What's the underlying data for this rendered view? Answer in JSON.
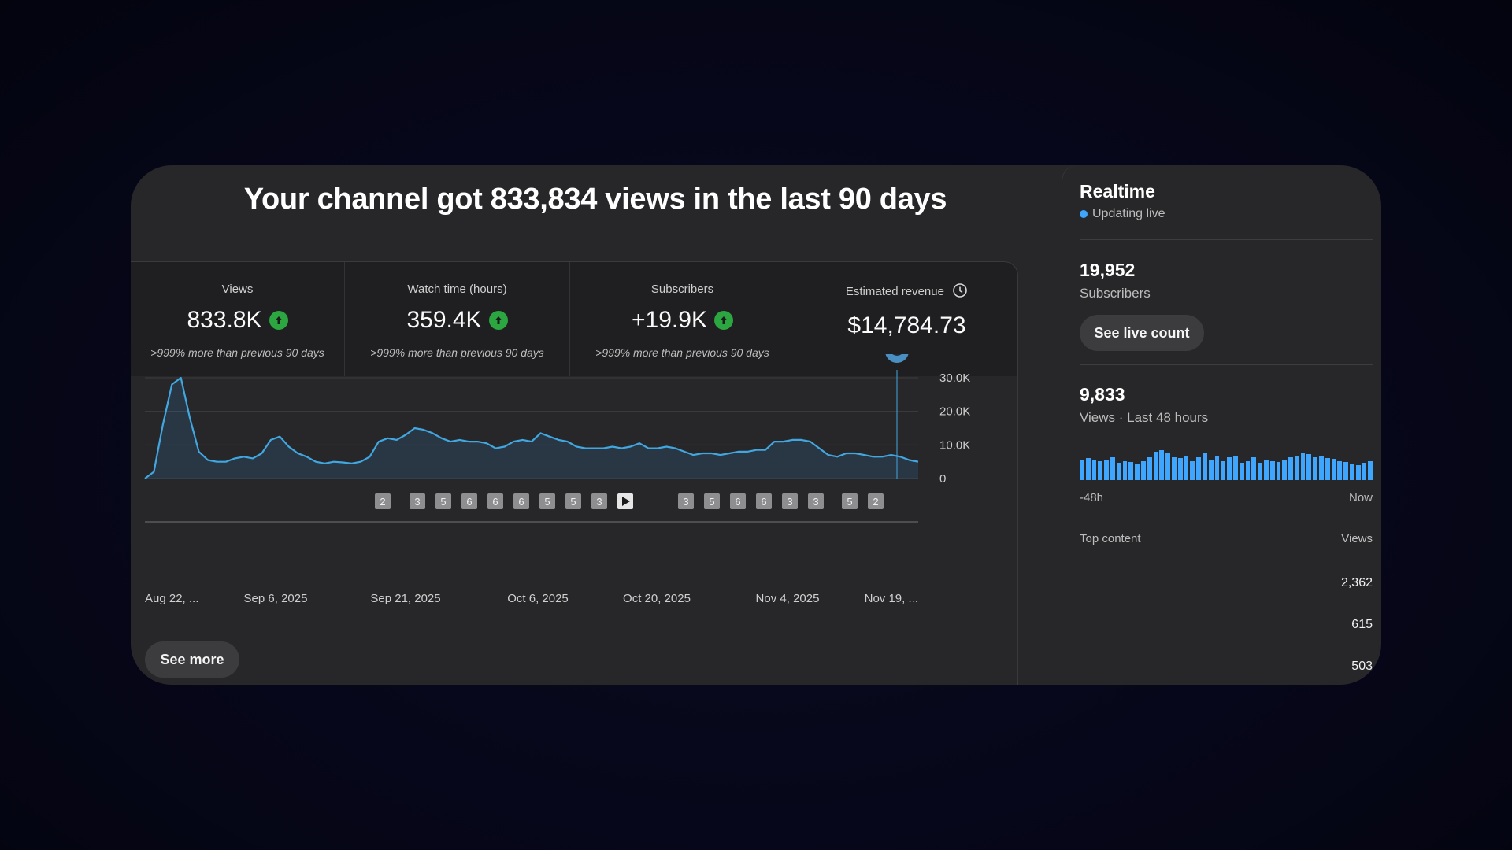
{
  "headline": "Your channel got 833,834 views in the last 90 days",
  "metrics": [
    {
      "label": "Views",
      "value": "833.8K",
      "trend": "up",
      "note": ">999% more than previous 90 days"
    },
    {
      "label": "Watch time (hours)",
      "value": "359.4K",
      "trend": "up",
      "note": ">999% more than previous 90 days"
    },
    {
      "label": "Subscribers",
      "value": "+19.9K",
      "trend": "up",
      "note": ">999% more than previous 90 days"
    },
    {
      "label": "Estimated revenue",
      "value": "$14,784.73",
      "icon": "clock-icon"
    }
  ],
  "chart_data": {
    "type": "area",
    "y_ticks": [
      "30.0K",
      "20.0K",
      "10.0K",
      "0"
    ],
    "ylim": [
      0,
      30000
    ],
    "x_ticks": [
      "Aug 22, ...",
      "Sep 6, 2025",
      "Sep 21, 2025",
      "Oct 6, 2025",
      "Oct 20, 2025",
      "Nov 4, 2025",
      "Nov 19, ..."
    ],
    "values": [
      0,
      2000,
      16000,
      28000,
      30000,
      18000,
      8000,
      5500,
      5000,
      5000,
      6000,
      6500,
      6000,
      7500,
      11500,
      12500,
      9500,
      7500,
      6500,
      5000,
      4500,
      5000,
      4800,
      4500,
      5000,
      6500,
      11000,
      12000,
      11500,
      13000,
      15000,
      14500,
      13500,
      12000,
      11000,
      11500,
      11000,
      11000,
      10500,
      9000,
      9500,
      11000,
      11500,
      11000,
      13500,
      12500,
      11500,
      11000,
      9500,
      9000,
      9000,
      9000,
      9500,
      9000,
      9500,
      10500,
      9000,
      9000,
      9500,
      9000,
      8000,
      7000,
      7500,
      7500,
      7000,
      7500,
      8000,
      8000,
      8500,
      8500,
      11000,
      11000,
      11500,
      11500,
      11000,
      9000,
      7000,
      6500,
      7500,
      7500,
      7000,
      6500,
      6500,
      7000,
      6500,
      5500,
      5000
    ],
    "markers": [
      {
        "label": "2",
        "type": "box"
      },
      {
        "label": "3",
        "type": "box"
      },
      {
        "label": "5",
        "type": "box"
      },
      {
        "label": "6",
        "type": "box"
      },
      {
        "label": "6",
        "type": "box"
      },
      {
        "label": "6",
        "type": "box"
      },
      {
        "label": "5",
        "type": "box"
      },
      {
        "label": "5",
        "type": "box"
      },
      {
        "label": "3",
        "type": "box"
      },
      {
        "label": "",
        "type": "play"
      },
      {
        "label": "3",
        "type": "box"
      },
      {
        "label": "5",
        "type": "box"
      },
      {
        "label": "6",
        "type": "box"
      },
      {
        "label": "6",
        "type": "box"
      },
      {
        "label": "3",
        "type": "box"
      },
      {
        "label": "3",
        "type": "box"
      },
      {
        "label": "5",
        "type": "box"
      },
      {
        "label": "2",
        "type": "box"
      }
    ],
    "grid": true,
    "highlight_icon": "graduation-cap-icon",
    "accent": "#3ea6ff"
  },
  "see_more": "See more",
  "realtime": {
    "title": "Realtime",
    "status": "Updating live",
    "subscribers_value": "19,952",
    "subscribers_label": "Subscribers",
    "live_button": "See live count",
    "views_value": "9,833",
    "views_label": "Views · Last 48 hours",
    "bars": [
      0.55,
      0.58,
      0.55,
      0.5,
      0.55,
      0.6,
      0.45,
      0.5,
      0.48,
      0.42,
      0.5,
      0.6,
      0.75,
      0.8,
      0.72,
      0.6,
      0.58,
      0.65,
      0.5,
      0.6,
      0.7,
      0.55,
      0.65,
      0.5,
      0.6,
      0.62,
      0.45,
      0.5,
      0.6,
      0.45,
      0.55,
      0.5,
      0.48,
      0.55,
      0.6,
      0.65,
      0.7,
      0.68,
      0.6,
      0.62,
      0.58,
      0.56,
      0.5,
      0.48,
      0.42,
      0.4,
      0.45,
      0.5
    ],
    "axis_left": "-48h",
    "axis_right": "Now",
    "top_content_label": "Top content",
    "top_content_views_label": "Views",
    "top_content": [
      "2,362",
      "615",
      "503"
    ],
    "colors": {
      "live_dot": "#3ea6ff",
      "trend_up": "#2ba640"
    }
  }
}
